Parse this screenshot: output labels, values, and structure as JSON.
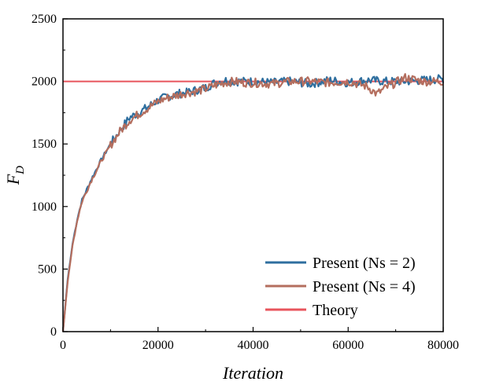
{
  "chart_data": {
    "type": "line",
    "title": "",
    "xlabel": "Iteration",
    "ylabel_main": "F",
    "ylabel_sub": "D",
    "xlim": [
      0,
      80000
    ],
    "ylim": [
      0,
      2500
    ],
    "xticks": [
      0,
      20000,
      40000,
      60000,
      80000
    ],
    "yticks": [
      0,
      500,
      1000,
      1500,
      2000,
      2500
    ],
    "grid": false,
    "legend_position": "bottom-right",
    "theory_value": 2000,
    "series": [
      {
        "name": "Present (Ns = 2)",
        "color": "#2f6f9f",
        "x": [
          0,
          1000,
          2000,
          3000,
          4000,
          6000,
          8000,
          10000,
          12000,
          14000,
          16000,
          18000,
          20000,
          22000,
          24000,
          26000,
          28000,
          30000,
          32000,
          34000,
          36000,
          38000,
          40000,
          44000,
          48000,
          52000,
          56000,
          60000,
          64000,
          68000,
          72000,
          76000,
          80000
        ],
        "y": [
          0,
          420,
          700,
          900,
          1050,
          1220,
          1370,
          1500,
          1610,
          1710,
          1750,
          1800,
          1850,
          1880,
          1900,
          1910,
          1930,
          1950,
          1990,
          2010,
          2000,
          2000,
          2000,
          1990,
          2000,
          1980,
          2010,
          1990,
          2010,
          2000,
          2000,
          2010,
          2020
        ]
      },
      {
        "name": "Present (Ns = 4)",
        "color": "#b46e5e",
        "x": [
          0,
          1000,
          2000,
          3000,
          4000,
          6000,
          8000,
          10000,
          12000,
          14000,
          16000,
          18000,
          20000,
          22000,
          24000,
          26000,
          28000,
          30000,
          32000,
          34000,
          36000,
          38000,
          40000,
          44000,
          48000,
          52000,
          56000,
          60000,
          64000,
          66000,
          68000,
          72000,
          76000,
          80000
        ],
        "y": [
          0,
          400,
          690,
          890,
          1040,
          1210,
          1360,
          1490,
          1600,
          1690,
          1740,
          1790,
          1840,
          1870,
          1890,
          1910,
          1920,
          1940,
          1970,
          1990,
          2000,
          1990,
          1990,
          1980,
          2000,
          2000,
          1990,
          2000,
          1960,
          1900,
          1950,
          2030,
          2000,
          2000
        ]
      },
      {
        "name": "Theory",
        "color": "#e8545c",
        "x": [
          0,
          80000
        ],
        "y": [
          2000,
          2000
        ]
      }
    ]
  }
}
